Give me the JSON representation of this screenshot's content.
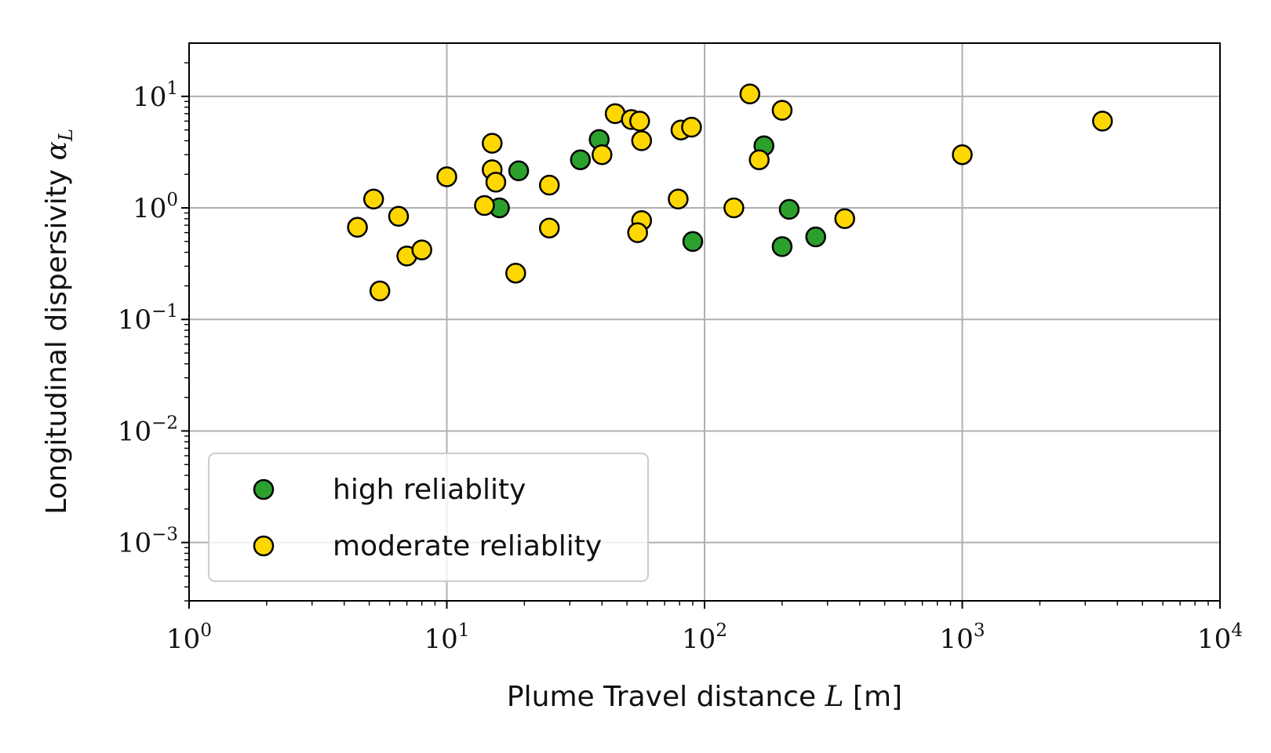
{
  "chart_data": {
    "type": "scatter",
    "xlabel_prefix": "Plume Travel distance ",
    "xlabel_math": "L",
    "xlabel_suffix": " [m]",
    "ylabel_prefix": "Longitudinal dispersivity ",
    "ylabel_math": "α",
    "ylabel_sub": "L",
    "x_scale": "log",
    "y_scale": "log",
    "xlim": [
      1,
      10000
    ],
    "ylim": [
      0.0003,
      30
    ],
    "x_ticks": [
      {
        "value": 1,
        "base": "10",
        "exp": "0"
      },
      {
        "value": 10,
        "base": "10",
        "exp": "1"
      },
      {
        "value": 100,
        "base": "10",
        "exp": "2"
      },
      {
        "value": 1000,
        "base": "10",
        "exp": "3"
      },
      {
        "value": 10000,
        "base": "10",
        "exp": "4"
      }
    ],
    "y_ticks": [
      {
        "value": 0.001,
        "base": "10",
        "exp": "−3"
      },
      {
        "value": 0.01,
        "base": "10",
        "exp": "−2"
      },
      {
        "value": 0.1,
        "base": "10",
        "exp": "−1"
      },
      {
        "value": 1,
        "base": "10",
        "exp": "0"
      },
      {
        "value": 10,
        "base": "10",
        "exp": "1"
      }
    ],
    "grid": true,
    "legend_position": "lower-left",
    "series": [
      {
        "name": "high reliablity",
        "color": "#2ca02c",
        "points": [
          [
            16,
            1.0
          ],
          [
            19,
            2.15
          ],
          [
            33,
            2.7
          ],
          [
            39,
            4.1
          ],
          [
            90,
            0.5
          ],
          [
            170,
            3.6
          ],
          [
            200,
            0.45
          ],
          [
            213,
            0.97
          ],
          [
            270,
            0.55
          ]
        ]
      },
      {
        "name": "moderate reliablity",
        "color": "#ffd700",
        "points": [
          [
            4.5,
            0.67
          ],
          [
            5.2,
            1.2
          ],
          [
            5.5,
            0.18
          ],
          [
            6.5,
            0.84
          ],
          [
            7.0,
            0.37
          ],
          [
            8.0,
            0.42
          ],
          [
            10,
            1.9
          ],
          [
            14,
            1.05
          ],
          [
            15,
            3.8
          ],
          [
            15,
            2.2
          ],
          [
            15.5,
            1.7
          ],
          [
            18.5,
            0.26
          ],
          [
            25,
            1.6
          ],
          [
            25,
            0.66
          ],
          [
            40,
            3.0
          ],
          [
            45,
            7.0
          ],
          [
            52,
            6.2
          ],
          [
            56,
            6.0
          ],
          [
            57,
            4.0
          ],
          [
            57,
            0.77
          ],
          [
            55,
            0.6
          ],
          [
            79,
            1.2
          ],
          [
            81,
            5.0
          ],
          [
            89,
            5.3
          ],
          [
            130,
            1.0
          ],
          [
            150,
            10.5
          ],
          [
            163,
            2.7
          ],
          [
            200,
            7.5
          ],
          [
            350,
            0.8
          ],
          [
            1000,
            3.0
          ],
          [
            3500,
            6.0
          ]
        ]
      }
    ]
  }
}
